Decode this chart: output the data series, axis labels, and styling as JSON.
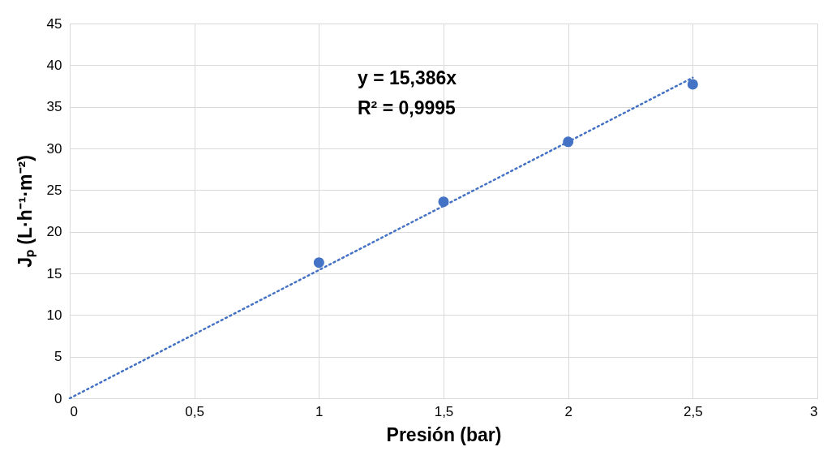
{
  "chart_data": {
    "type": "scatter",
    "xlabel": "Presión (bar)",
    "ylabel": "Jₚ (L·h⁻¹·m⁻²)",
    "xlim": [
      0,
      3
    ],
    "xticks": [
      0,
      {
        "value": 0.5,
        "label": "0,5"
      },
      1,
      {
        "value": 1.5,
        "label": "1,5"
      },
      2,
      {
        "value": 2.5,
        "label": "2,5"
      },
      3
    ],
    "ylim": [
      0,
      45
    ],
    "yticks": [
      0,
      5,
      10,
      15,
      20,
      25,
      30,
      35,
      40,
      45
    ],
    "grid": true,
    "annotations": [
      "y = 15,386x",
      "R² = 0,9995"
    ],
    "series": [
      {
        "color": "#4472c4",
        "marker": "circle",
        "x": [
          1,
          1.5,
          2,
          2.5
        ],
        "values": [
          16.3,
          23.6,
          30.8,
          37.7
        ]
      },
      {
        "type": "line",
        "color": "#4472c4",
        "line_style": "dotted",
        "x": [
          0,
          2.5
        ],
        "values": [
          0,
          38.5
        ]
      }
    ]
  }
}
